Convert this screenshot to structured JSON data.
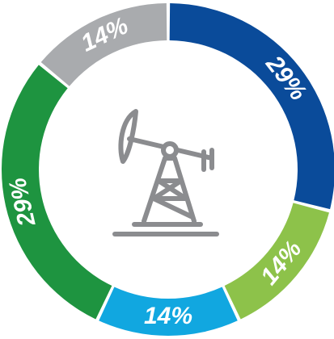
{
  "chart_data": {
    "type": "donut",
    "values": [
      29,
      14,
      14,
      29,
      14
    ],
    "value_labels": [
      "29%",
      "14%",
      "14%",
      "29%",
      "14%"
    ],
    "colors": [
      "#0a4b9a",
      "#8dc24a",
      "#11a7e0",
      "#1e9440",
      "#a9abae"
    ]
  }
}
